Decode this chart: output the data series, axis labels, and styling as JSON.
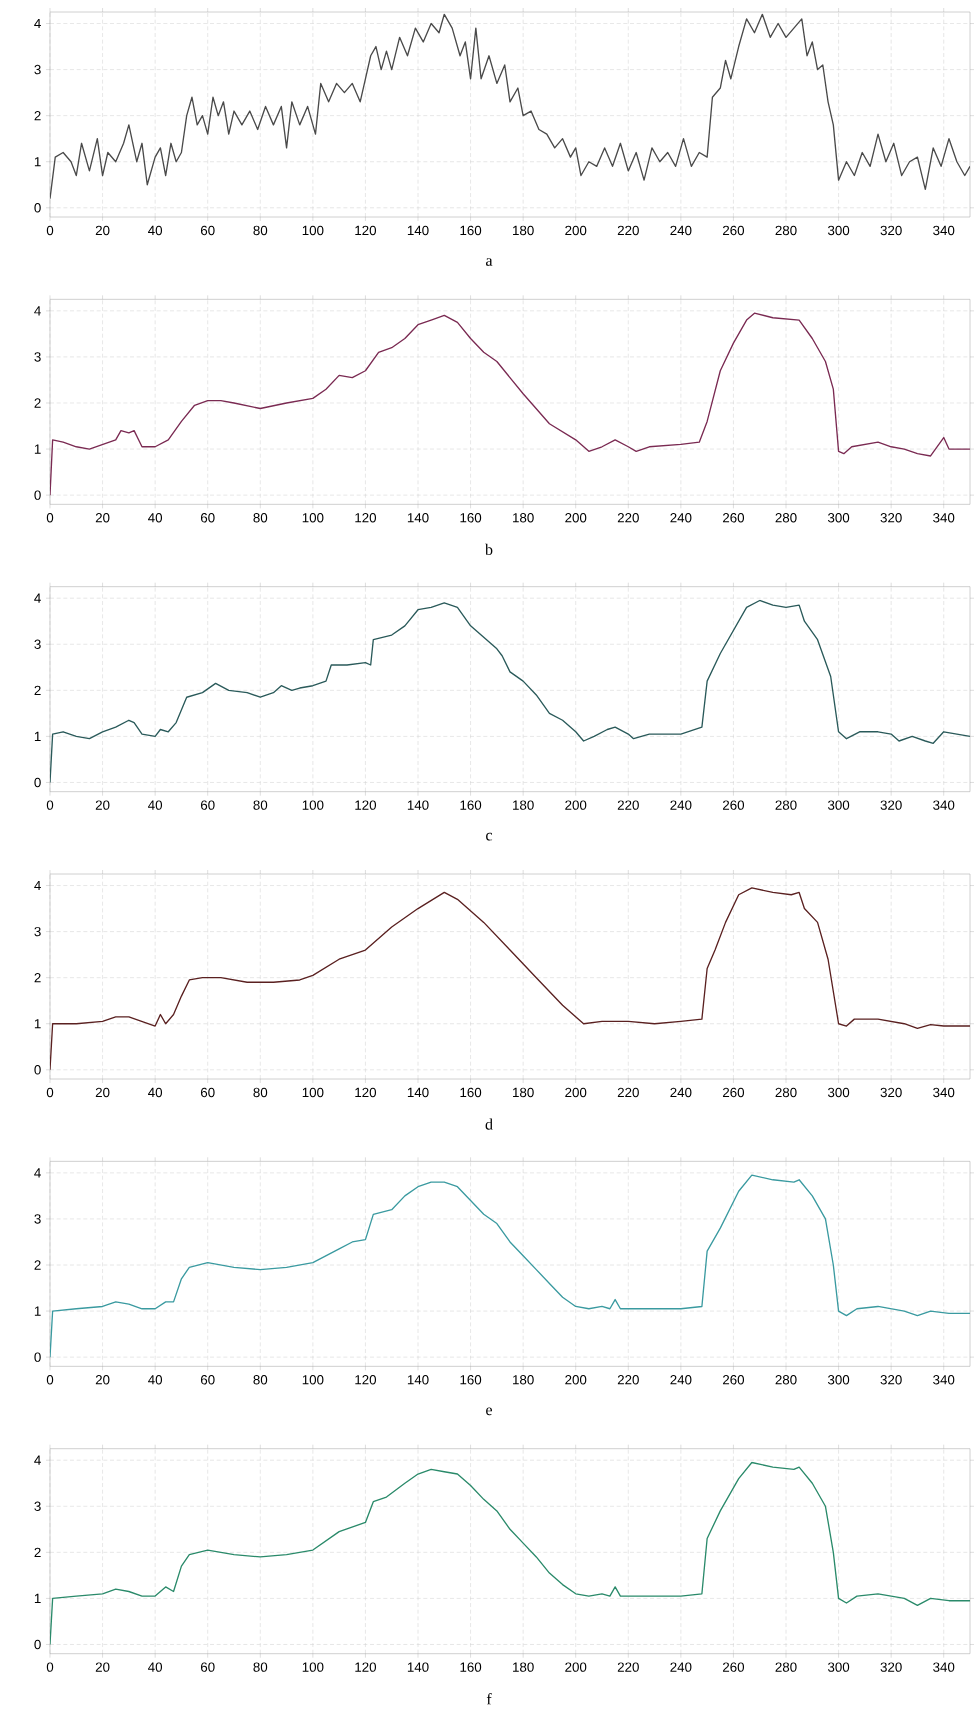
{
  "chart_data": [
    {
      "type": "line",
      "color": "#4a4a4a",
      "xlim": [
        0,
        350
      ],
      "ylim": [
        -0.2,
        4.25
      ],
      "xticks": [
        0,
        20,
        40,
        60,
        80,
        100,
        120,
        140,
        160,
        180,
        200,
        220,
        240,
        260,
        280,
        300,
        320,
        340
      ],
      "yticks": [
        0,
        1,
        2,
        3,
        4
      ],
      "grid": true,
      "annotations": [
        "a"
      ],
      "x": [
        0,
        2,
        5,
        8,
        10,
        12,
        15,
        18,
        20,
        22,
        25,
        28,
        30,
        33,
        35,
        37,
        40,
        42,
        44,
        46,
        48,
        50,
        52,
        54,
        56,
        58,
        60,
        62,
        64,
        66,
        68,
        70,
        73,
        76,
        79,
        82,
        85,
        88,
        90,
        92,
        95,
        98,
        101,
        103,
        106,
        109,
        112,
        115,
        118,
        120,
        122,
        124,
        126,
        128,
        130,
        133,
        136,
        139,
        142,
        145,
        148,
        150,
        153,
        156,
        158,
        160,
        162,
        164,
        167,
        170,
        173,
        175,
        178,
        180,
        183,
        186,
        189,
        192,
        195,
        198,
        200,
        202,
        205,
        208,
        211,
        214,
        217,
        220,
        223,
        226,
        229,
        232,
        235,
        238,
        241,
        244,
        247,
        250,
        252,
        255,
        257,
        259,
        262,
        265,
        268,
        271,
        274,
        277,
        280,
        283,
        286,
        288,
        290,
        292,
        294,
        296,
        298,
        300,
        303,
        306,
        309,
        312,
        315,
        318,
        321,
        324,
        327,
        330,
        333,
        336,
        339,
        342,
        345,
        348,
        350
      ],
      "values": [
        0.2,
        1.1,
        1.2,
        1.0,
        0.7,
        1.4,
        0.8,
        1.5,
        0.7,
        1.2,
        1.0,
        1.4,
        1.8,
        1.0,
        1.4,
        0.5,
        1.1,
        1.3,
        0.7,
        1.4,
        1.0,
        1.2,
        2.0,
        2.4,
        1.8,
        2.0,
        1.6,
        2.4,
        2.0,
        2.3,
        1.6,
        2.1,
        1.8,
        2.1,
        1.7,
        2.2,
        1.8,
        2.2,
        1.3,
        2.3,
        1.8,
        2.2,
        1.6,
        2.7,
        2.3,
        2.7,
        2.5,
        2.7,
        2.3,
        2.8,
        3.3,
        3.5,
        3.0,
        3.4,
        3.0,
        3.7,
        3.3,
        3.9,
        3.6,
        4.0,
        3.8,
        4.2,
        3.9,
        3.3,
        3.6,
        2.8,
        3.9,
        2.8,
        3.3,
        2.7,
        3.1,
        2.3,
        2.6,
        2.0,
        2.1,
        1.7,
        1.6,
        1.3,
        1.5,
        1.1,
        1.3,
        0.7,
        1.0,
        0.9,
        1.3,
        0.9,
        1.4,
        0.8,
        1.2,
        0.6,
        1.3,
        1.0,
        1.2,
        0.9,
        1.5,
        0.9,
        1.2,
        1.1,
        2.4,
        2.6,
        3.2,
        2.8,
        3.5,
        4.1,
        3.8,
        4.2,
        3.7,
        4.0,
        3.7,
        3.9,
        4.1,
        3.3,
        3.6,
        3.0,
        3.1,
        2.3,
        1.8,
        0.6,
        1.0,
        0.7,
        1.2,
        0.9,
        1.6,
        1.0,
        1.4,
        0.7,
        1.0,
        1.1,
        0.4,
        1.3,
        0.9,
        1.5,
        1.0,
        0.7,
        0.9
      ]
    },
    {
      "type": "line",
      "color": "#7a2a52",
      "xlim": [
        0,
        350
      ],
      "ylim": [
        -0.2,
        4.25
      ],
      "xticks": [
        0,
        20,
        40,
        60,
        80,
        100,
        120,
        140,
        160,
        180,
        200,
        220,
        240,
        260,
        280,
        300,
        320,
        340
      ],
      "yticks": [
        0,
        1,
        2,
        3,
        4
      ],
      "grid": true,
      "annotations": [
        "b"
      ],
      "x": [
        0,
        1,
        5,
        10,
        15,
        20,
        25,
        27,
        30,
        32,
        35,
        40,
        45,
        50,
        55,
        60,
        65,
        70,
        80,
        90,
        100,
        105,
        110,
        115,
        120,
        125,
        130,
        135,
        140,
        145,
        150,
        155,
        160,
        165,
        170,
        180,
        190,
        200,
        205,
        210,
        215,
        220,
        223,
        228,
        240,
        247,
        250,
        255,
        260,
        265,
        268,
        275,
        285,
        290,
        295,
        298,
        300,
        302,
        305,
        310,
        315,
        320,
        325,
        330,
        335,
        340,
        342,
        350
      ],
      "values": [
        0,
        1.2,
        1.15,
        1.05,
        1.0,
        1.1,
        1.2,
        1.4,
        1.35,
        1.4,
        1.05,
        1.05,
        1.2,
        1.6,
        1.95,
        2.05,
        2.05,
        2.0,
        1.88,
        2.0,
        2.1,
        2.3,
        2.6,
        2.55,
        2.7,
        3.1,
        3.2,
        3.4,
        3.7,
        3.8,
        3.9,
        3.75,
        3.4,
        3.1,
        2.9,
        2.2,
        1.55,
        1.2,
        0.95,
        1.05,
        1.2,
        1.05,
        0.95,
        1.05,
        1.1,
        1.15,
        1.6,
        2.7,
        3.3,
        3.8,
        3.95,
        3.85,
        3.8,
        3.4,
        2.9,
        2.3,
        0.95,
        0.9,
        1.05,
        1.1,
        1.15,
        1.05,
        1.0,
        0.9,
        0.85,
        1.25,
        1.0,
        1.0
      ]
    },
    {
      "type": "line",
      "color": "#2a5a5a",
      "xlim": [
        0,
        350
      ],
      "ylim": [
        -0.2,
        4.25
      ],
      "xticks": [
        0,
        20,
        40,
        60,
        80,
        100,
        120,
        140,
        160,
        180,
        200,
        220,
        240,
        260,
        280,
        300,
        320,
        340
      ],
      "yticks": [
        0,
        1,
        2,
        3,
        4
      ],
      "grid": true,
      "annotations": [
        "c"
      ],
      "x": [
        0,
        1,
        5,
        10,
        15,
        20,
        25,
        30,
        32,
        35,
        40,
        42,
        45,
        48,
        52,
        58,
        63,
        68,
        75,
        80,
        85,
        88,
        92,
        95,
        100,
        105,
        107,
        113,
        120,
        122,
        123,
        130,
        135,
        140,
        145,
        150,
        155,
        160,
        165,
        170,
        172,
        175,
        180,
        185,
        190,
        195,
        200,
        203,
        207,
        212,
        215,
        220,
        222,
        228,
        240,
        248,
        250,
        255,
        260,
        265,
        270,
        275,
        280,
        285,
        287,
        292,
        297,
        300,
        303,
        308,
        315,
        320,
        323,
        328,
        333,
        336,
        340,
        345,
        350
      ],
      "values": [
        0,
        1.05,
        1.1,
        1.0,
        0.95,
        1.1,
        1.2,
        1.35,
        1.3,
        1.05,
        1.0,
        1.15,
        1.1,
        1.3,
        1.85,
        1.95,
        2.15,
        2.0,
        1.95,
        1.85,
        1.95,
        2.1,
        2.0,
        2.05,
        2.1,
        2.2,
        2.55,
        2.55,
        2.6,
        2.55,
        3.1,
        3.2,
        3.4,
        3.75,
        3.8,
        3.9,
        3.8,
        3.4,
        3.15,
        2.9,
        2.75,
        2.4,
        2.2,
        1.9,
        1.5,
        1.35,
        1.1,
        0.9,
        1.0,
        1.15,
        1.2,
        1.05,
        0.95,
        1.05,
        1.05,
        1.2,
        2.2,
        2.8,
        3.3,
        3.8,
        3.95,
        3.85,
        3.8,
        3.85,
        3.5,
        3.1,
        2.3,
        1.1,
        0.95,
        1.1,
        1.1,
        1.05,
        0.9,
        1.0,
        0.9,
        0.85,
        1.1,
        1.05,
        1.0
      ]
    },
    {
      "type": "line",
      "color": "#5a2020",
      "xlim": [
        0,
        350
      ],
      "ylim": [
        -0.2,
        4.25
      ],
      "xticks": [
        0,
        20,
        40,
        60,
        80,
        100,
        120,
        140,
        160,
        180,
        200,
        220,
        240,
        260,
        280,
        300,
        320,
        340
      ],
      "yticks": [
        0,
        1,
        2,
        3,
        4
      ],
      "grid": true,
      "annotations": [
        "d"
      ],
      "x": [
        0,
        1,
        10,
        20,
        25,
        30,
        35,
        40,
        42,
        44,
        47,
        50,
        53,
        58,
        65,
        75,
        85,
        95,
        100,
        110,
        120,
        130,
        140,
        150,
        155,
        165,
        175,
        185,
        195,
        203,
        210,
        220,
        230,
        240,
        248,
        250,
        253,
        257,
        262,
        267,
        275,
        282,
        285,
        287,
        292,
        296,
        300,
        303,
        306,
        315,
        325,
        330,
        335,
        340,
        350
      ],
      "values": [
        0,
        1.0,
        1.0,
        1.05,
        1.15,
        1.15,
        1.05,
        0.95,
        1.2,
        1.0,
        1.2,
        1.6,
        1.95,
        2.0,
        2.0,
        1.9,
        1.9,
        1.95,
        2.05,
        2.4,
        2.6,
        3.1,
        3.5,
        3.85,
        3.7,
        3.2,
        2.6,
        2.0,
        1.4,
        1.0,
        1.05,
        1.05,
        1.0,
        1.05,
        1.1,
        2.2,
        2.6,
        3.2,
        3.8,
        3.95,
        3.85,
        3.8,
        3.85,
        3.5,
        3.2,
        2.4,
        1.0,
        0.95,
        1.1,
        1.1,
        1.0,
        0.9,
        0.98,
        0.95,
        0.95
      ]
    },
    {
      "type": "line",
      "color": "#3a9aa0",
      "xlim": [
        0,
        350
      ],
      "ylim": [
        -0.2,
        4.25
      ],
      "xticks": [
        0,
        20,
        40,
        60,
        80,
        100,
        120,
        140,
        160,
        180,
        200,
        220,
        240,
        260,
        280,
        300,
        320,
        340
      ],
      "yticks": [
        0,
        1,
        2,
        3,
        4
      ],
      "grid": true,
      "annotations": [
        "e"
      ],
      "x": [
        0,
        1,
        10,
        20,
        25,
        30,
        35,
        40,
        44,
        47,
        50,
        53,
        60,
        70,
        80,
        90,
        100,
        110,
        115,
        120,
        123,
        130,
        135,
        140,
        145,
        150,
        155,
        160,
        165,
        170,
        175,
        180,
        185,
        190,
        195,
        200,
        205,
        210,
        213,
        215,
        217,
        225,
        240,
        248,
        250,
        255,
        262,
        267,
        275,
        283,
        285,
        290,
        295,
        298,
        300,
        303,
        307,
        315,
        325,
        330,
        335,
        342,
        350
      ],
      "values": [
        0,
        1.0,
        1.05,
        1.1,
        1.2,
        1.15,
        1.05,
        1.05,
        1.2,
        1.2,
        1.7,
        1.95,
        2.05,
        1.95,
        1.9,
        1.95,
        2.05,
        2.35,
        2.5,
        2.55,
        3.1,
        3.2,
        3.5,
        3.7,
        3.8,
        3.8,
        3.7,
        3.4,
        3.1,
        2.9,
        2.5,
        2.2,
        1.9,
        1.6,
        1.3,
        1.1,
        1.05,
        1.1,
        1.05,
        1.25,
        1.05,
        1.05,
        1.05,
        1.1,
        2.3,
        2.8,
        3.6,
        3.95,
        3.85,
        3.8,
        3.85,
        3.5,
        3.0,
        2.0,
        1.0,
        0.9,
        1.05,
        1.1,
        1.0,
        0.9,
        1.0,
        0.95,
        0.95
      ]
    },
    {
      "type": "line",
      "color": "#2a8a6a",
      "xlim": [
        0,
        350
      ],
      "ylim": [
        -0.2,
        4.25
      ],
      "xticks": [
        0,
        20,
        40,
        60,
        80,
        100,
        120,
        140,
        160,
        180,
        200,
        220,
        240,
        260,
        280,
        300,
        320,
        340
      ],
      "yticks": [
        0,
        1,
        2,
        3,
        4
      ],
      "grid": true,
      "annotations": [
        "f"
      ],
      "x": [
        0,
        1,
        10,
        20,
        25,
        30,
        35,
        40,
        44,
        47,
        50,
        53,
        60,
        70,
        80,
        90,
        100,
        110,
        115,
        120,
        123,
        128,
        135,
        140,
        145,
        150,
        155,
        160,
        165,
        170,
        175,
        180,
        185,
        190,
        195,
        200,
        205,
        210,
        213,
        215,
        217,
        225,
        240,
        248,
        250,
        255,
        262,
        267,
        275,
        283,
        285,
        290,
        295,
        298,
        300,
        303,
        307,
        315,
        325,
        330,
        335,
        342,
        350
      ],
      "values": [
        0,
        1.0,
        1.05,
        1.1,
        1.2,
        1.15,
        1.05,
        1.05,
        1.25,
        1.15,
        1.7,
        1.95,
        2.05,
        1.95,
        1.9,
        1.95,
        2.05,
        2.45,
        2.55,
        2.65,
        3.1,
        3.2,
        3.5,
        3.7,
        3.8,
        3.75,
        3.7,
        3.45,
        3.15,
        2.9,
        2.5,
        2.2,
        1.9,
        1.55,
        1.3,
        1.1,
        1.05,
        1.1,
        1.05,
        1.25,
        1.05,
        1.05,
        1.05,
        1.1,
        2.3,
        2.9,
        3.6,
        3.95,
        3.85,
        3.8,
        3.85,
        3.5,
        3.0,
        2.0,
        1.0,
        0.9,
        1.05,
        1.1,
        1.0,
        0.85,
        1.0,
        0.95,
        0.95
      ]
    }
  ]
}
